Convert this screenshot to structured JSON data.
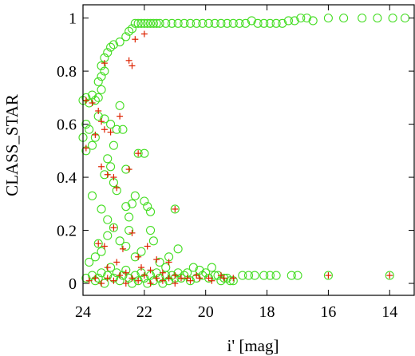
{
  "chart_data": {
    "type": "scatter",
    "title": "",
    "xlabel": "i' [mag]",
    "ylabel": "CLASS_STAR",
    "x_reversed": true,
    "xlim": [
      24,
      13.2
    ],
    "ylim": [
      -0.045,
      1.05
    ],
    "grid": false,
    "x_ticks": [
      24,
      22,
      20,
      18,
      16,
      14
    ],
    "x_tick_labels": [
      "24",
      "22",
      "20",
      "18",
      "16",
      "14"
    ],
    "y_ticks": [
      0,
      0.2,
      0.4,
      0.6,
      0.8,
      1
    ],
    "y_tick_labels": [
      "0",
      "0.2",
      "0.4",
      "0.6",
      "0.8",
      "1"
    ],
    "colors": {
      "circles": "#44dd22",
      "crosses": "#dd2200",
      "axes": "#000000"
    },
    "series": [
      {
        "marker": "circle",
        "points": [
          [
            24.0,
            0.69
          ],
          [
            23.9,
            0.7
          ],
          [
            23.8,
            0.68
          ],
          [
            23.7,
            0.71
          ],
          [
            23.6,
            0.69
          ],
          [
            23.5,
            0.7
          ],
          [
            23.4,
            0.73
          ],
          [
            23.5,
            0.76
          ],
          [
            23.4,
            0.78
          ],
          [
            23.3,
            0.8
          ],
          [
            23.4,
            0.82
          ],
          [
            23.3,
            0.85
          ],
          [
            23.2,
            0.87
          ],
          [
            23.1,
            0.89
          ],
          [
            23.0,
            0.9
          ],
          [
            22.8,
            0.91
          ],
          [
            22.6,
            0.93
          ],
          [
            22.5,
            0.95
          ],
          [
            22.4,
            0.96
          ],
          [
            22.3,
            0.98
          ],
          [
            22.2,
            0.98
          ],
          [
            22.1,
            0.98
          ],
          [
            22.0,
            0.98
          ],
          [
            21.9,
            0.98
          ],
          [
            21.8,
            0.98
          ],
          [
            21.7,
            0.98
          ],
          [
            21.6,
            0.98
          ],
          [
            21.5,
            0.98
          ],
          [
            21.3,
            0.98
          ],
          [
            21.1,
            0.98
          ],
          [
            20.9,
            0.98
          ],
          [
            20.7,
            0.98
          ],
          [
            20.5,
            0.98
          ],
          [
            20.3,
            0.98
          ],
          [
            20.1,
            0.98
          ],
          [
            19.9,
            0.98
          ],
          [
            19.7,
            0.98
          ],
          [
            19.5,
            0.98
          ],
          [
            19.3,
            0.98
          ],
          [
            19.1,
            0.98
          ],
          [
            18.9,
            0.98
          ],
          [
            18.7,
            0.98
          ],
          [
            18.5,
            0.99
          ],
          [
            18.3,
            0.98
          ],
          [
            18.1,
            0.98
          ],
          [
            17.9,
            0.98
          ],
          [
            17.7,
            0.98
          ],
          [
            17.5,
            0.98
          ],
          [
            17.3,
            0.99
          ],
          [
            17.1,
            0.99
          ],
          [
            16.9,
            1.0
          ],
          [
            16.7,
            1.0
          ],
          [
            16.5,
            0.99
          ],
          [
            16.0,
            1.0
          ],
          [
            15.5,
            1.0
          ],
          [
            14.9,
            1.0
          ],
          [
            14.4,
            1.0
          ],
          [
            13.9,
            1.0
          ],
          [
            13.5,
            1.0
          ],
          [
            23.9,
            0.6
          ],
          [
            23.8,
            0.58
          ],
          [
            24.0,
            0.55
          ],
          [
            23.9,
            0.5
          ],
          [
            23.7,
            0.52
          ],
          [
            23.6,
            0.55
          ],
          [
            23.5,
            0.63
          ],
          [
            23.3,
            0.62
          ],
          [
            23.1,
            0.6
          ],
          [
            22.9,
            0.58
          ],
          [
            22.7,
            0.58
          ],
          [
            22.8,
            0.67
          ],
          [
            23.0,
            0.52
          ],
          [
            23.2,
            0.47
          ],
          [
            23.1,
            0.44
          ],
          [
            23.3,
            0.41
          ],
          [
            23.0,
            0.38
          ],
          [
            22.9,
            0.35
          ],
          [
            22.6,
            0.43
          ],
          [
            22.2,
            0.49
          ],
          [
            22.0,
            0.49
          ],
          [
            22.4,
            0.3
          ],
          [
            22.3,
            0.33
          ],
          [
            22.0,
            0.31
          ],
          [
            23.7,
            0.33
          ],
          [
            23.4,
            0.28
          ],
          [
            23.2,
            0.24
          ],
          [
            22.6,
            0.29
          ],
          [
            22.5,
            0.25
          ],
          [
            21.9,
            0.29
          ],
          [
            21.8,
            0.27
          ],
          [
            21.0,
            0.28
          ],
          [
            23.8,
            0.08
          ],
          [
            23.6,
            0.1
          ],
          [
            23.5,
            0.15
          ],
          [
            23.4,
            0.12
          ],
          [
            23.2,
            0.18
          ],
          [
            23.0,
            0.21
          ],
          [
            22.8,
            0.16
          ],
          [
            22.6,
            0.14
          ],
          [
            22.5,
            0.2
          ],
          [
            22.3,
            0.1
          ],
          [
            22.1,
            0.12
          ],
          [
            21.8,
            0.2
          ],
          [
            21.7,
            0.16
          ],
          [
            21.5,
            0.08
          ],
          [
            21.3,
            0.06
          ],
          [
            21.2,
            0.1
          ],
          [
            20.9,
            0.13
          ],
          [
            20.8,
            0.02
          ],
          [
            20.6,
            0.04
          ],
          [
            20.4,
            0.06
          ],
          [
            20.2,
            0.05
          ],
          [
            20.0,
            0.04
          ],
          [
            19.8,
            0.06
          ],
          [
            19.6,
            0.03
          ],
          [
            19.4,
            0.02
          ],
          [
            19.2,
            0.01
          ],
          [
            18.6,
            0.03
          ],
          [
            18.1,
            0.03
          ],
          [
            17.9,
            0.03
          ],
          [
            17.2,
            0.03
          ],
          [
            17.0,
            0.03
          ],
          [
            16.0,
            0.03
          ],
          [
            14.0,
            0.03
          ],
          [
            23.9,
            0.02
          ],
          [
            23.7,
            0.03
          ],
          [
            23.6,
            0.01
          ],
          [
            23.5,
            0.02
          ],
          [
            23.4,
            0.04
          ],
          [
            23.3,
            0.0
          ],
          [
            23.2,
            0.03
          ],
          [
            23.1,
            0.06
          ],
          [
            23.0,
            0.02
          ],
          [
            22.9,
            0.04
          ],
          [
            22.8,
            0.01
          ],
          [
            22.7,
            0.03
          ],
          [
            22.6,
            0.05
          ],
          [
            22.5,
            0.02
          ],
          [
            22.4,
            0.0
          ],
          [
            22.3,
            0.03
          ],
          [
            22.2,
            0.01
          ],
          [
            22.1,
            0.04
          ],
          [
            22.0,
            0.02
          ],
          [
            21.9,
            0.0
          ],
          [
            21.8,
            0.03
          ],
          [
            21.7,
            0.01
          ],
          [
            21.6,
            0.04
          ],
          [
            21.5,
            0.02
          ],
          [
            21.4,
            0.0
          ],
          [
            21.3,
            0.03
          ],
          [
            21.2,
            0.01
          ],
          [
            21.1,
            0.03
          ],
          [
            21.0,
            0.02
          ],
          [
            20.9,
            0.04
          ],
          [
            20.7,
            0.03
          ],
          [
            20.5,
            0.01
          ],
          [
            20.3,
            0.02
          ],
          [
            20.1,
            0.03
          ],
          [
            19.9,
            0.02
          ],
          [
            19.7,
            0.03
          ],
          [
            19.5,
            0.01
          ],
          [
            19.3,
            0.02
          ],
          [
            19.1,
            0.01
          ],
          [
            18.8,
            0.03
          ],
          [
            18.4,
            0.03
          ],
          [
            17.7,
            0.03
          ]
        ]
      },
      {
        "marker": "cross",
        "points": [
          [
            23.9,
            0.69
          ],
          [
            23.7,
            0.68
          ],
          [
            23.5,
            0.65
          ],
          [
            23.4,
            0.61
          ],
          [
            23.3,
            0.58
          ],
          [
            23.1,
            0.57
          ],
          [
            22.8,
            0.63
          ],
          [
            23.9,
            0.51
          ],
          [
            23.6,
            0.56
          ],
          [
            23.4,
            0.44
          ],
          [
            23.2,
            0.41
          ],
          [
            23.0,
            0.4
          ],
          [
            22.9,
            0.36
          ],
          [
            22.5,
            0.43
          ],
          [
            22.2,
            0.49
          ],
          [
            23.3,
            0.83
          ],
          [
            22.5,
            0.84
          ],
          [
            22.4,
            0.82
          ],
          [
            22.0,
            0.94
          ],
          [
            22.3,
            0.92
          ],
          [
            23.5,
            0.15
          ],
          [
            23.3,
            0.14
          ],
          [
            23.0,
            0.21
          ],
          [
            22.7,
            0.13
          ],
          [
            22.4,
            0.19
          ],
          [
            22.2,
            0.1
          ],
          [
            21.9,
            0.14
          ],
          [
            21.6,
            0.09
          ],
          [
            21.2,
            0.08
          ],
          [
            23.2,
            0.06
          ],
          [
            22.9,
            0.08
          ],
          [
            22.6,
            0.04
          ],
          [
            22.1,
            0.06
          ],
          [
            21.8,
            0.05
          ],
          [
            21.4,
            0.04
          ],
          [
            21.0,
            0.03
          ],
          [
            20.6,
            0.02
          ],
          [
            20.3,
            0.03
          ],
          [
            19.9,
            0.02
          ],
          [
            19.5,
            0.03
          ],
          [
            19.1,
            0.02
          ],
          [
            16.0,
            0.03
          ],
          [
            14.0,
            0.03
          ],
          [
            21.0,
            0.28
          ],
          [
            23.8,
            0.01
          ],
          [
            23.6,
            0.02
          ],
          [
            23.4,
            0.0
          ],
          [
            23.2,
            0.02
          ],
          [
            23.0,
            0.01
          ],
          [
            22.8,
            0.03
          ],
          [
            22.6,
            0.0
          ],
          [
            22.4,
            0.02
          ],
          [
            22.2,
            0.01
          ],
          [
            22.0,
            0.03
          ],
          [
            21.8,
            0.0
          ],
          [
            21.6,
            0.02
          ],
          [
            21.4,
            0.01
          ],
          [
            21.2,
            0.02
          ],
          [
            21.0,
            0.0
          ],
          [
            20.8,
            0.02
          ],
          [
            20.5,
            0.01
          ],
          [
            20.2,
            0.02
          ],
          [
            19.8,
            0.01
          ],
          [
            19.4,
            0.02
          ]
        ]
      }
    ]
  }
}
